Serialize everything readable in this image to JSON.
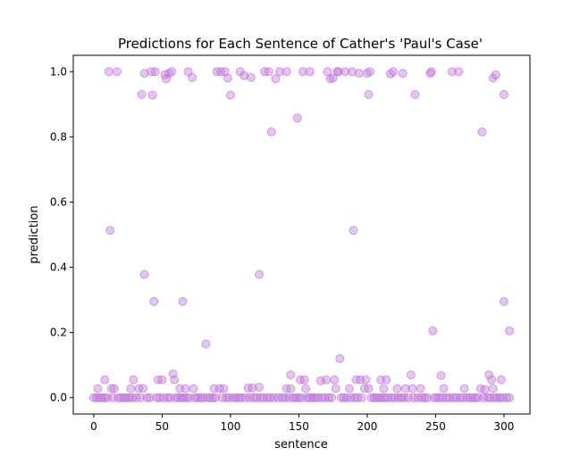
{
  "chart_data": {
    "type": "scatter",
    "title": "Predictions for Each Sentence of Cather's 'Paul's Case'",
    "xlabel": "sentence",
    "ylabel": "prediction",
    "xlim": [
      -15,
      319
    ],
    "ylim": [
      -0.05,
      1.05
    ],
    "xticks": [
      0,
      50,
      100,
      150,
      200,
      250,
      300
    ],
    "yticks": [
      "0.0",
      "0.2",
      "0.4",
      "0.6",
      "0.8",
      "1.0"
    ],
    "grid": false,
    "legend": "none",
    "point_color": "#c77de0",
    "point_edge_color": "#b560d0",
    "points": [
      [
        11,
        1.0
      ],
      [
        17,
        1.0
      ],
      [
        35,
        0.93
      ],
      [
        37,
        0.995
      ],
      [
        42,
        1.0
      ],
      [
        43,
        0.928
      ],
      [
        45,
        1.0
      ],
      [
        52,
        0.99
      ],
      [
        53,
        0.978
      ],
      [
        55,
        0.995
      ],
      [
        57,
        1.0
      ],
      [
        69,
        1.0
      ],
      [
        72,
        0.982
      ],
      [
        90,
        1.0
      ],
      [
        93,
        1.0
      ],
      [
        96,
        1.0
      ],
      [
        98,
        0.98
      ],
      [
        100,
        0.928
      ],
      [
        107,
        1.0
      ],
      [
        110,
        0.988
      ],
      [
        115,
        0.982
      ],
      [
        125,
        1.0
      ],
      [
        128,
        1.0
      ],
      [
        130,
        0.815
      ],
      [
        133,
        0.978
      ],
      [
        136,
        1.0
      ],
      [
        141,
        1.0
      ],
      [
        149,
        0.858
      ],
      [
        153,
        1.0
      ],
      [
        158,
        1.0
      ],
      [
        171,
        1.0
      ],
      [
        173,
        0.978
      ],
      [
        175,
        0.98
      ],
      [
        178,
        1.0
      ],
      [
        179,
        1.0
      ],
      [
        184,
        1.0
      ],
      [
        189,
        1.0
      ],
      [
        194,
        0.995
      ],
      [
        200,
        0.995
      ],
      [
        201,
        0.93
      ],
      [
        202,
        1.0
      ],
      [
        217,
        0.993
      ],
      [
        219,
        1.0
      ],
      [
        226,
        0.995
      ],
      [
        235,
        0.93
      ],
      [
        246,
        0.995
      ],
      [
        247,
        1.0
      ],
      [
        262,
        1.0
      ],
      [
        267,
        1.0
      ],
      [
        284,
        0.815
      ],
      [
        292,
        0.98
      ],
      [
        294,
        0.99
      ],
      [
        300,
        0.93
      ],
      [
        12,
        0.513
      ],
      [
        190,
        0.513
      ],
      [
        37,
        0.378
      ],
      [
        121,
        0.378
      ],
      [
        44,
        0.295
      ],
      [
        65,
        0.295
      ],
      [
        300,
        0.295
      ],
      [
        82,
        0.165
      ],
      [
        248,
        0.205
      ],
      [
        304,
        0.205
      ],
      [
        180,
        0.12
      ],
      [
        58,
        0.073
      ],
      [
        144,
        0.07
      ],
      [
        232,
        0.07
      ],
      [
        254,
        0.068
      ],
      [
        289,
        0.07
      ],
      [
        8,
        0.055
      ],
      [
        29,
        0.055
      ],
      [
        47,
        0.055
      ],
      [
        50,
        0.055
      ],
      [
        59,
        0.055
      ],
      [
        151,
        0.055
      ],
      [
        154,
        0.055
      ],
      [
        166,
        0.052
      ],
      [
        170,
        0.055
      ],
      [
        176,
        0.055
      ],
      [
        192,
        0.055
      ],
      [
        195,
        0.055
      ],
      [
        199,
        0.055
      ],
      [
        210,
        0.055
      ],
      [
        214,
        0.055
      ],
      [
        291,
        0.055
      ],
      [
        298,
        0.055
      ],
      [
        3,
        0.028
      ],
      [
        13,
        0.028
      ],
      [
        15,
        0.028
      ],
      [
        27,
        0.028
      ],
      [
        33,
        0.028
      ],
      [
        36,
        0.028
      ],
      [
        63,
        0.028
      ],
      [
        67,
        0.028
      ],
      [
        73,
        0.028
      ],
      [
        88,
        0.028
      ],
      [
        92,
        0.028
      ],
      [
        95,
        0.028
      ],
      [
        113,
        0.03
      ],
      [
        116,
        0.03
      ],
      [
        121,
        0.032
      ],
      [
        141,
        0.028
      ],
      [
        144,
        0.028
      ],
      [
        155,
        0.028
      ],
      [
        177,
        0.028
      ],
      [
        187,
        0.028
      ],
      [
        198,
        0.028
      ],
      [
        201,
        0.028
      ],
      [
        212,
        0.028
      ],
      [
        222,
        0.028
      ],
      [
        228,
        0.028
      ],
      [
        233,
        0.028
      ],
      [
        239,
        0.028
      ],
      [
        256,
        0.028
      ],
      [
        271,
        0.028
      ],
      [
        283,
        0.028
      ],
      [
        286,
        0.025
      ],
      [
        292,
        0.028
      ],
      [
        0,
        0.0
      ],
      [
        2,
        0.0
      ],
      [
        4,
        0.0
      ],
      [
        6,
        0.0
      ],
      [
        8,
        0.0
      ],
      [
        10,
        0.0
      ],
      [
        14,
        0.0
      ],
      [
        18,
        0.0
      ],
      [
        20,
        0.0
      ],
      [
        22,
        0.0
      ],
      [
        24,
        0.0
      ],
      [
        26,
        0.0
      ],
      [
        28,
        0.0
      ],
      [
        31,
        0.0
      ],
      [
        34,
        0.0
      ],
      [
        39,
        0.0
      ],
      [
        41,
        0.0
      ],
      [
        46,
        0.0
      ],
      [
        48,
        0.0
      ],
      [
        51,
        0.0
      ],
      [
        54,
        0.0
      ],
      [
        56,
        0.0
      ],
      [
        60,
        0.0
      ],
      [
        62,
        0.0
      ],
      [
        64,
        0.0
      ],
      [
        66,
        0.0
      ],
      [
        68,
        0.0
      ],
      [
        70,
        0.0
      ],
      [
        74,
        0.0
      ],
      [
        76,
        0.0
      ],
      [
        78,
        0.0
      ],
      [
        80,
        0.0
      ],
      [
        83,
        0.0
      ],
      [
        85,
        0.0
      ],
      [
        87,
        0.0
      ],
      [
        89,
        0.0
      ],
      [
        94,
        0.0
      ],
      [
        97,
        0.0
      ],
      [
        99,
        0.0
      ],
      [
        102,
        0.0
      ],
      [
        104,
        0.0
      ],
      [
        106,
        0.0
      ],
      [
        108,
        0.0
      ],
      [
        111,
        0.0
      ],
      [
        114,
        0.0
      ],
      [
        117,
        0.0
      ],
      [
        119,
        0.0
      ],
      [
        122,
        0.0
      ],
      [
        124,
        0.0
      ],
      [
        127,
        0.0
      ],
      [
        129,
        0.0
      ],
      [
        132,
        0.0
      ],
      [
        135,
        0.0
      ],
      [
        138,
        0.0
      ],
      [
        140,
        0.0
      ],
      [
        143,
        0.0
      ],
      [
        146,
        0.0
      ],
      [
        148,
        0.0
      ],
      [
        150,
        0.0
      ],
      [
        152,
        0.0
      ],
      [
        156,
        0.0
      ],
      [
        158,
        0.0
      ],
      [
        160,
        0.0
      ],
      [
        162,
        0.0
      ],
      [
        164,
        0.0
      ],
      [
        167,
        0.0
      ],
      [
        169,
        0.0
      ],
      [
        172,
        0.0
      ],
      [
        174,
        0.0
      ],
      [
        181,
        0.0
      ],
      [
        183,
        0.0
      ],
      [
        185,
        0.0
      ],
      [
        188,
        0.0
      ],
      [
        191,
        0.0
      ],
      [
        193,
        0.0
      ],
      [
        196,
        0.0
      ],
      [
        203,
        0.0
      ],
      [
        205,
        0.0
      ],
      [
        207,
        0.0
      ],
      [
        209,
        0.0
      ],
      [
        211,
        0.0
      ],
      [
        213,
        0.0
      ],
      [
        215,
        0.0
      ],
      [
        218,
        0.0
      ],
      [
        220,
        0.0
      ],
      [
        223,
        0.0
      ],
      [
        225,
        0.0
      ],
      [
        227,
        0.0
      ],
      [
        230,
        0.0
      ],
      [
        234,
        0.0
      ],
      [
        237,
        0.0
      ],
      [
        240,
        0.0
      ],
      [
        242,
        0.0
      ],
      [
        244,
        0.0
      ],
      [
        249,
        0.0
      ],
      [
        251,
        0.0
      ],
      [
        253,
        0.0
      ],
      [
        255,
        0.0
      ],
      [
        258,
        0.0
      ],
      [
        260,
        0.0
      ],
      [
        263,
        0.0
      ],
      [
        265,
        0.0
      ],
      [
        268,
        0.0
      ],
      [
        270,
        0.0
      ],
      [
        273,
        0.0
      ],
      [
        275,
        0.0
      ],
      [
        277,
        0.0
      ],
      [
        279,
        0.0
      ],
      [
        281,
        0.0
      ],
      [
        285,
        0.0
      ],
      [
        288,
        0.0
      ],
      [
        290,
        0.0
      ],
      [
        293,
        0.0
      ],
      [
        295,
        0.0
      ],
      [
        297,
        0.0
      ],
      [
        299,
        0.0
      ],
      [
        302,
        0.0
      ],
      [
        304,
        0.0
      ]
    ]
  }
}
